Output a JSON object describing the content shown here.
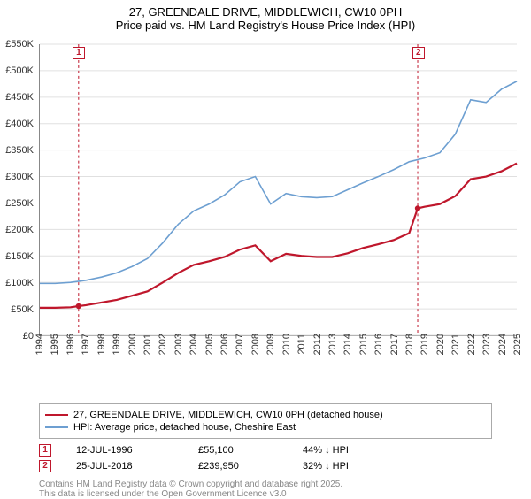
{
  "title": "27, GREENDALE DRIVE, MIDDLEWICH, CW10 0PH",
  "subtitle": "Price paid vs. HM Land Registry's House Price Index (HPI)",
  "chart": {
    "type": "line",
    "background_color": "#ffffff",
    "grid_color": "#e0e0e0",
    "axis_color": "#888888",
    "ylim": [
      0,
      550
    ],
    "ytick_step": 50,
    "ytick_labels": [
      "£0",
      "£50K",
      "£100K",
      "£150K",
      "£200K",
      "£250K",
      "£300K",
      "£350K",
      "£400K",
      "£450K",
      "£500K",
      "£550K"
    ],
    "xlim": [
      1994,
      2025
    ],
    "xtick_step": 1,
    "xtick_labels": [
      "1994",
      "1995",
      "1996",
      "1997",
      "1998",
      "1999",
      "2000",
      "2001",
      "2002",
      "2003",
      "2004",
      "2005",
      "2006",
      "2007",
      "2008",
      "2009",
      "2010",
      "2011",
      "2012",
      "2013",
      "2014",
      "2015",
      "2016",
      "2017",
      "2018",
      "2019",
      "2020",
      "2021",
      "2022",
      "2023",
      "2024",
      "2025"
    ],
    "label_fontsize": 11,
    "series": [
      {
        "name": "price_paid",
        "label": "27, GREENDALE DRIVE, MIDDLEWICH, CW10 0PH (detached house)",
        "color": "#bf172c",
        "line_width": 2.2,
        "x": [
          1994,
          1995,
          1996,
          1996.52,
          1997,
          1998,
          1999,
          2000,
          2001,
          2002,
          2003,
          2004,
          2005,
          2006,
          2007,
          2008,
          2009,
          2010,
          2011,
          2012,
          2013,
          2014,
          2015,
          2016,
          2017,
          2018,
          2018.56,
          2019,
          2020,
          2021,
          2022,
          2023,
          2024,
          2025
        ],
        "y": [
          52,
          52,
          53,
          55.1,
          57,
          62,
          67,
          75,
          83,
          100,
          118,
          133,
          140,
          148,
          162,
          170,
          140,
          154,
          150,
          148,
          148,
          155,
          165,
          172,
          180,
          193,
          239.95,
          243,
          248,
          263,
          295,
          300,
          310,
          325
        ]
      },
      {
        "name": "hpi",
        "label": "HPI: Average price, detached house, Cheshire East",
        "color": "#6d9fd1",
        "line_width": 1.6,
        "x": [
          1994,
          1995,
          1996,
          1997,
          1998,
          1999,
          2000,
          2001,
          2002,
          2003,
          2004,
          2005,
          2006,
          2007,
          2008,
          2009,
          2010,
          2011,
          2012,
          2013,
          2014,
          2015,
          2016,
          2017,
          2018,
          2019,
          2020,
          2021,
          2022,
          2023,
          2024,
          2025
        ],
        "y": [
          98,
          98,
          100,
          104,
          110,
          118,
          130,
          145,
          175,
          210,
          235,
          248,
          265,
          290,
          300,
          248,
          268,
          262,
          260,
          262,
          275,
          288,
          300,
          313,
          328,
          335,
          345,
          380,
          445,
          440,
          465,
          480
        ]
      }
    ],
    "markers": [
      {
        "id": "1",
        "x": 1996.52,
        "y": 55.1
      },
      {
        "id": "2",
        "x": 2018.56,
        "y": 239.95
      }
    ]
  },
  "legend": {
    "items": [
      {
        "color": "#bf172c",
        "label": "27, GREENDALE DRIVE, MIDDLEWICH, CW10 0PH (detached house)"
      },
      {
        "color": "#6d9fd1",
        "label": "HPI: Average price, detached house, Cheshire East"
      }
    ]
  },
  "transactions": [
    {
      "marker": "1",
      "date": "12-JUL-1996",
      "price": "£55,100",
      "delta": "44% ↓ HPI"
    },
    {
      "marker": "2",
      "date": "25-JUL-2018",
      "price": "£239,950",
      "delta": "32% ↓ HPI"
    }
  ],
  "footer": {
    "line1": "Contains HM Land Registry data © Crown copyright and database right 2025.",
    "line2": "This data is licensed under the Open Government Licence v3.0"
  }
}
